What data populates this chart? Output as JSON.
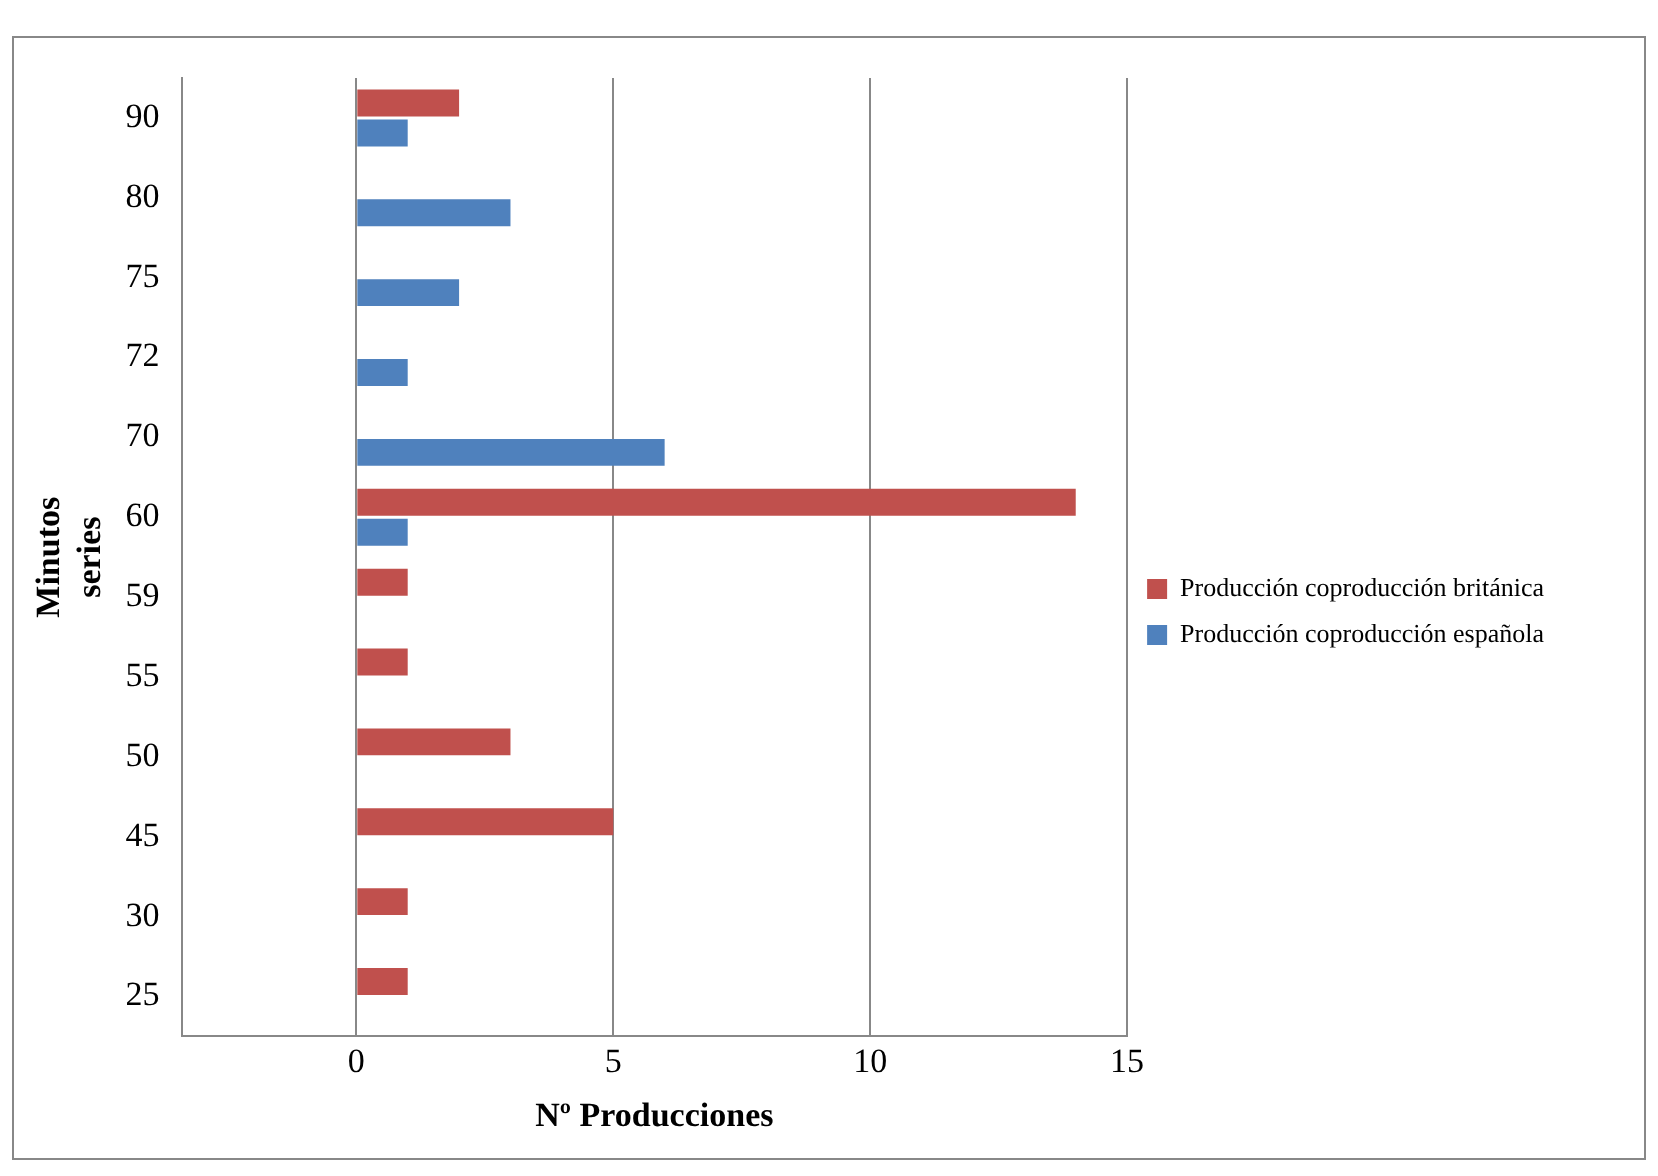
{
  "chart_data": {
    "type": "bar",
    "orientation": "horizontal",
    "xlabel": "Nº Producciones",
    "ylabel": "Minutos series",
    "categories": [
      "90",
      "80",
      "75",
      "72",
      "70",
      "60",
      "59",
      "55",
      "50",
      "45",
      "30",
      "25"
    ],
    "series": [
      {
        "name": "Producción coproducción británica",
        "color": "#c0504d",
        "values": [
          2,
          null,
          null,
          null,
          null,
          14,
          1,
          1,
          3,
          5,
          1,
          1
        ]
      },
      {
        "name": "Producción coproducción española",
        "color": "#4f81bd",
        "values": [
          1,
          3,
          2,
          1,
          6,
          1,
          null,
          null,
          null,
          null,
          null,
          null
        ]
      }
    ],
    "xlim": [
      -3.4,
      15
    ],
    "xticks": [
      0,
      5,
      10,
      15
    ],
    "grid": "x",
    "legend": "right"
  }
}
